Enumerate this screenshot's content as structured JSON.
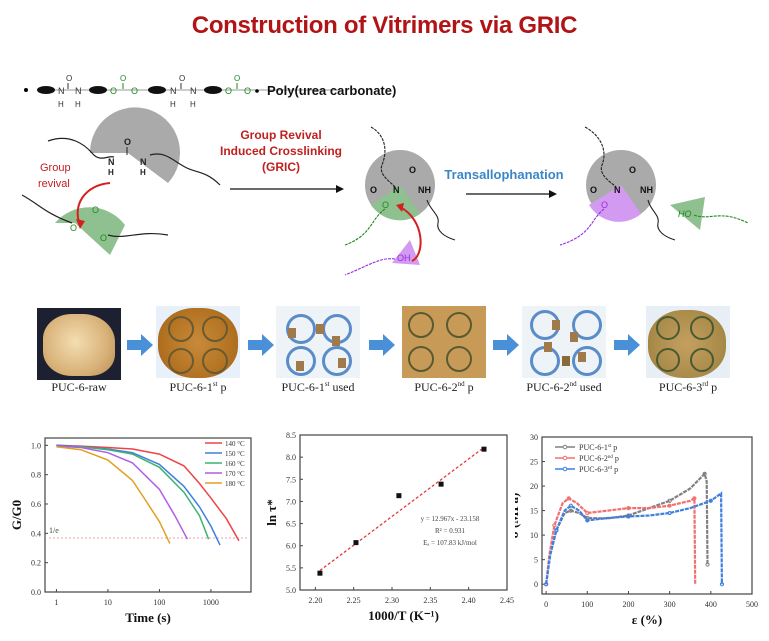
{
  "title": "Construction of Vitrimers via GRIC",
  "polymer_chain": {
    "atoms": {
      "N": "N",
      "H": "H",
      "O": "O"
    },
    "label": "Poly(urea carbonate)"
  },
  "scheme": {
    "group_revival_label": [
      "Group",
      "revival"
    ],
    "gric_label": [
      "Group Revival",
      "Induced Crosslinking",
      "(GRIC)"
    ],
    "transallophanation_label": "Transallophanation",
    "atoms": {
      "N": "N",
      "NH": "NH",
      "O": "O",
      "OH": "OH",
      "HO": "HO"
    }
  },
  "photos": [
    {
      "label_base": "PUC-6-raw",
      "sup": "",
      "suffix": ""
    },
    {
      "label_base": "PUC-6-1",
      "sup": "st",
      "suffix": " p"
    },
    {
      "label_base": "PUC-6-1",
      "sup": "st",
      "suffix": " used"
    },
    {
      "label_base": "PUC-6-2",
      "sup": "nd",
      "suffix": " p"
    },
    {
      "label_base": "PUC-6-2",
      "sup": "nd",
      "suffix": " used"
    },
    {
      "label_base": "PUC-6-3",
      "sup": "rd",
      "suffix": " p"
    }
  ],
  "colors": {
    "title_red": "#b11416",
    "trans_blue": "#3a86c8",
    "arrow_blue": "#4a90d9",
    "gray_sector": "#aaaaaa",
    "green_sector": "#8fc08f",
    "purple_sector": "#d39af2",
    "green_atom": "#1e8a1e",
    "purple_atom": "#9a2be0"
  },
  "chart_data": [
    {
      "type": "line",
      "title": "",
      "xlabel": "Time (s)",
      "ylabel": "G/G0",
      "xscale": "log",
      "xlim": [
        0.6,
        6000
      ],
      "ylim": [
        0.0,
        1.05
      ],
      "xticks": [
        1,
        10,
        100,
        1000
      ],
      "xtick_labels": [
        "1",
        "10",
        "100",
        "1000"
      ],
      "yticks": [
        0.0,
        0.2,
        0.4,
        0.6,
        0.8,
        1.0
      ],
      "ytick_labels": [
        "0.0",
        "0.2",
        "0.4",
        "0.6",
        "0.8",
        "1.0"
      ],
      "reference_line": {
        "y": 0.368,
        "label": "1/e"
      },
      "legend_position": "top-right",
      "series": [
        {
          "name": "140 °C",
          "color": "#ee4444",
          "x": [
            1,
            3,
            10,
            30,
            100,
            300,
            600,
            1000,
            2000,
            3500
          ],
          "y": [
            1.0,
            0.995,
            0.985,
            0.975,
            0.94,
            0.86,
            0.74,
            0.64,
            0.5,
            0.35
          ]
        },
        {
          "name": "150 °C",
          "color": "#3f7fe0",
          "x": [
            1,
            3,
            10,
            30,
            100,
            300,
            600,
            1000,
            1500
          ],
          "y": [
            1.0,
            0.99,
            0.975,
            0.95,
            0.87,
            0.72,
            0.58,
            0.45,
            0.32
          ]
        },
        {
          "name": "160 °C",
          "color": "#3cb371",
          "x": [
            1,
            3,
            10,
            30,
            100,
            300,
            600,
            900
          ],
          "y": [
            0.995,
            0.99,
            0.97,
            0.94,
            0.85,
            0.68,
            0.52,
            0.36
          ]
        },
        {
          "name": "170 °C",
          "color": "#b05ce8",
          "x": [
            1,
            3,
            10,
            30,
            100,
            200,
            350
          ],
          "y": [
            0.995,
            0.985,
            0.95,
            0.88,
            0.7,
            0.52,
            0.36
          ]
        },
        {
          "name": "180 °C",
          "color": "#e0a020",
          "x": [
            1,
            3,
            10,
            30,
            60,
            100,
            160
          ],
          "y": [
            0.99,
            0.97,
            0.9,
            0.76,
            0.6,
            0.48,
            0.33
          ]
        }
      ]
    },
    {
      "type": "scatter",
      "title": "",
      "xlabel": "1000/T (K⁻¹)",
      "ylabel": "ln τ*",
      "xlim": [
        2.18,
        2.45
      ],
      "ylim": [
        5.0,
        8.5
      ],
      "xticks": [
        2.2,
        2.25,
        2.3,
        2.35,
        2.4,
        2.45
      ],
      "xtick_labels": [
        "2.20",
        "2.25",
        "2.30",
        "2.35",
        "2.40",
        "2.45"
      ],
      "yticks": [
        5.0,
        5.5,
        6.0,
        6.5,
        7.0,
        7.5,
        8.0,
        8.5
      ],
      "ytick_labels": [
        "5.0",
        "5.5",
        "6.0",
        "6.5",
        "7.0",
        "7.5",
        "8.0",
        "8.5"
      ],
      "points": {
        "x": [
          2.206,
          2.253,
          2.309,
          2.364,
          2.42
        ],
        "y": [
          5.38,
          6.07,
          7.13,
          7.39,
          8.18
        ]
      },
      "fit": {
        "x": [
          2.206,
          2.42
        ],
        "y": [
          5.44,
          8.22
        ],
        "color": "#e03030"
      },
      "annotations": [
        "y = 12.967x - 23.158",
        "R² = 0.931",
        "Eₐ = 107.83 kJ/mol"
      ]
    },
    {
      "type": "line",
      "title": "",
      "xlabel": "ε (%)",
      "ylabel": "σ (MPa)",
      "xlim": [
        -10,
        500
      ],
      "ylim": [
        -2,
        30
      ],
      "xticks": [
        0,
        100,
        200,
        300,
        400,
        500
      ],
      "xtick_labels": [
        "0",
        "100",
        "200",
        "300",
        "400",
        "500"
      ],
      "yticks": [
        0,
        5,
        10,
        15,
        20,
        25,
        30
      ],
      "ytick_labels": [
        "0",
        "5",
        "10",
        "15",
        "20",
        "25",
        "30"
      ],
      "legend_position": "top-left",
      "series": [
        {
          "name_base": "PUC-6-1",
          "sup": "st",
          "suffix": " p",
          "color": "#808080",
          "x": [
            0,
            10,
            25,
            45,
            60,
            80,
            100,
            150,
            200,
            250,
            300,
            350,
            385,
            390,
            392
          ],
          "y": [
            0,
            6,
            11,
            14.5,
            15,
            14.5,
            13.5,
            13.4,
            14,
            15.5,
            17,
            19.5,
            22.5,
            21,
            4
          ]
        },
        {
          "name_base": "PUC-6-2",
          "sup": "nd",
          "suffix": " p",
          "color": "#f07070",
          "x": [
            0,
            8,
            20,
            40,
            55,
            75,
            100,
            150,
            200,
            250,
            300,
            350,
            360,
            362
          ],
          "y": [
            0,
            6,
            12,
            16.5,
            17.5,
            16.5,
            14.5,
            15,
            15.5,
            15.5,
            16,
            17,
            17.5,
            0
          ]
        },
        {
          "name_base": "PUC-6-3",
          "sup": "rd",
          "suffix": " p",
          "color": "#3f7fe0",
          "x": [
            0,
            10,
            25,
            45,
            60,
            80,
            100,
            150,
            200,
            250,
            300,
            350,
            400,
            425,
            427
          ],
          "y": [
            0,
            6,
            11,
            15,
            16,
            15,
            13,
            13.5,
            13.8,
            14,
            14.5,
            15.5,
            17,
            18.5,
            0
          ]
        }
      ]
    }
  ]
}
